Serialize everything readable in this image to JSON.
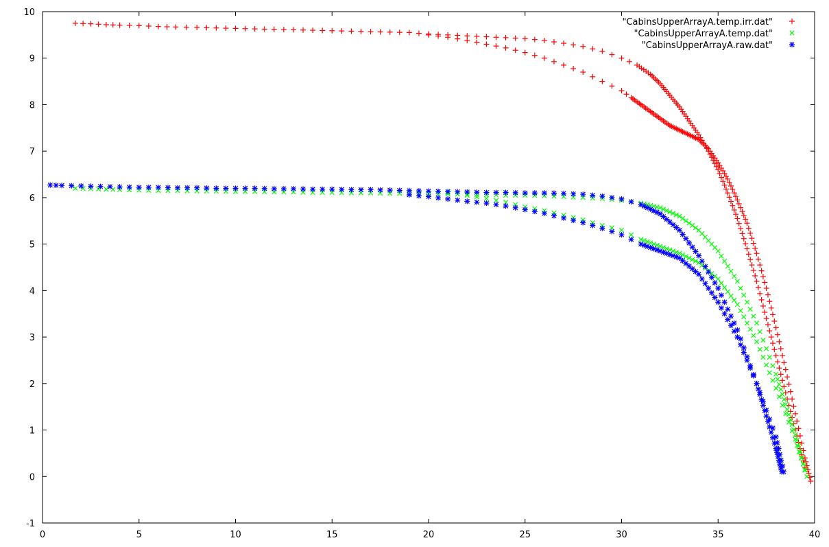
{
  "chart_data": {
    "type": "scatter",
    "title": "",
    "xlabel": "",
    "ylabel": "",
    "xlim": [
      0,
      40
    ],
    "ylim": [
      -1,
      10
    ],
    "xticks": [
      0,
      5,
      10,
      15,
      20,
      25,
      30,
      35,
      40
    ],
    "yticks": [
      -1,
      0,
      1,
      2,
      3,
      4,
      5,
      6,
      7,
      8,
      9,
      10
    ],
    "xtick_labels": [
      "0",
      "5",
      "10",
      "15",
      "20",
      "25",
      "30",
      "35",
      "40"
    ],
    "ytick_labels": [
      "-1",
      "0",
      "1",
      "2",
      "3",
      "4",
      "5",
      "6",
      "7",
      "8",
      "9",
      "10"
    ],
    "grid": false,
    "legend_position": "top-right",
    "series": [
      {
        "name": "\"CabinsUpperArrayA.temp.irr.dat\"",
        "color": "#ff0000",
        "marker": "plus",
        "upper_branch": {
          "x": [
            1.7,
            2.5,
            3.3,
            4.0,
            5.0,
            6.0,
            6.9,
            8.0,
            9.0,
            10.0,
            11.0,
            12.0,
            13.0,
            14.0,
            15.0,
            16.0,
            17.0,
            18.0,
            19.0,
            20.0,
            21.0,
            22.0,
            23.0,
            24.0,
            25.0,
            26.0,
            27.0,
            28.0,
            29.0,
            30.0,
            30.8,
            31.5,
            32.0,
            32.5,
            33.0,
            33.5,
            34.0,
            34.5,
            35.0,
            35.5,
            36.0,
            36.5,
            37.0,
            37.5,
            38.0,
            38.5,
            39.0,
            39.5
          ],
          "y": [
            9.75,
            9.74,
            9.72,
            9.71,
            9.7,
            9.68,
            9.67,
            9.66,
            9.65,
            9.64,
            9.63,
            9.62,
            9.61,
            9.6,
            9.59,
            9.58,
            9.57,
            9.56,
            9.55,
            9.52,
            9.5,
            9.48,
            9.46,
            9.44,
            9.42,
            9.38,
            9.32,
            9.25,
            9.15,
            9.0,
            8.85,
            8.65,
            8.45,
            8.2,
            7.95,
            7.65,
            7.35,
            7.0,
            6.6,
            6.1,
            5.55,
            4.9,
            4.2,
            3.4,
            2.6,
            1.8,
            1.0,
            0.2
          ]
        },
        "lower_branch": {
          "x": [
            20.0,
            21.0,
            22.0,
            23.0,
            24.0,
            25.0,
            26.0,
            27.0,
            28.0,
            29.0,
            30.0,
            30.5,
            31.0,
            31.5,
            32.0,
            32.5,
            33.0,
            33.5,
            34.0,
            34.5,
            35.0,
            35.5,
            36.0,
            36.5,
            37.0,
            37.5,
            38.0,
            38.5,
            39.0,
            39.5,
            39.8
          ],
          "y": [
            9.5,
            9.45,
            9.38,
            9.3,
            9.22,
            9.12,
            9.0,
            8.85,
            8.7,
            8.5,
            8.3,
            8.15,
            8.0,
            7.85,
            7.7,
            7.55,
            7.45,
            7.35,
            7.25,
            7.05,
            6.75,
            6.4,
            5.95,
            5.45,
            4.8,
            4.05,
            3.2,
            2.3,
            1.35,
            0.4,
            -0.1
          ]
        }
      },
      {
        "name": "\"CabinsUpperArrayA.temp.dat\"",
        "color": "#00ff00",
        "marker": "x",
        "upper_branch": {
          "x": [
            1.7,
            2.5,
            3.3,
            4.0,
            5.0,
            6.0,
            7.0,
            8.0,
            9.0,
            10.0,
            11.0,
            12.0,
            13.0,
            14.0,
            15.0,
            16.0,
            17.0,
            18.0,
            19.0,
            20.0,
            21.0,
            22.0,
            23.0,
            24.0,
            25.0,
            26.0,
            27.0,
            28.0,
            29.0,
            30.0,
            31.0,
            32.0,
            33.0,
            34.0,
            35.0,
            36.0,
            37.0,
            38.0,
            38.5,
            39.0,
            39.5
          ],
          "y": [
            6.2,
            6.19,
            6.18,
            6.17,
            6.16,
            6.15,
            6.15,
            6.14,
            6.14,
            6.13,
            6.13,
            6.12,
            6.12,
            6.11,
            6.11,
            6.1,
            6.1,
            6.09,
            6.09,
            6.08,
            6.08,
            6.07,
            6.06,
            6.05,
            6.05,
            6.04,
            6.02,
            6.0,
            5.98,
            5.94,
            5.88,
            5.78,
            5.6,
            5.3,
            4.85,
            4.2,
            3.3,
            2.2,
            1.55,
            0.9,
            0.15
          ]
        },
        "lower_branch": {
          "x": [
            21.0,
            22.0,
            23.0,
            24.0,
            25.0,
            26.0,
            27.0,
            28.0,
            29.0,
            30.0,
            31.0,
            32.0,
            33.0,
            34.0,
            35.0,
            36.0,
            37.0,
            38.0,
            39.0,
            39.6
          ],
          "y": [
            6.1,
            6.05,
            5.98,
            5.9,
            5.8,
            5.72,
            5.62,
            5.52,
            5.4,
            5.3,
            5.1,
            4.95,
            4.8,
            4.6,
            4.25,
            3.7,
            2.9,
            1.9,
            0.8,
            0.0
          ]
        }
      },
      {
        "name": "\"CabinsUpperArrayA.raw.dat\"",
        "color": "#0000ff",
        "marker": "star",
        "upper_branch": {
          "x": [
            0.4,
            1.0,
            2.0,
            3.0,
            4.0,
            5.0,
            6.0,
            7.0,
            8.0,
            9.0,
            10.0,
            11.0,
            12.0,
            13.0,
            14.0,
            15.0,
            16.0,
            17.0,
            18.0,
            19.0,
            20.0,
            21.0,
            22.0,
            23.0,
            24.0,
            25.0,
            26.0,
            27.0,
            28.0,
            29.0,
            30.0,
            31.0,
            32.0,
            33.0,
            34.0,
            35.0,
            36.0,
            37.0,
            37.5,
            38.0,
            38.3
          ],
          "y": [
            6.27,
            6.26,
            6.25,
            6.24,
            6.23,
            6.22,
            6.22,
            6.21,
            6.21,
            6.2,
            6.2,
            6.2,
            6.19,
            6.19,
            6.18,
            6.18,
            6.17,
            6.17,
            6.16,
            6.15,
            6.14,
            6.13,
            6.12,
            6.11,
            6.11,
            6.1,
            6.1,
            6.09,
            6.07,
            6.03,
            5.97,
            5.85,
            5.65,
            5.3,
            4.75,
            4.05,
            3.15,
            2.0,
            1.3,
            0.6,
            0.1
          ]
        },
        "lower_branch": {
          "x": [
            19.0,
            20.0,
            21.0,
            22.0,
            23.0,
            24.0,
            25.0,
            26.0,
            27.0,
            28.0,
            29.0,
            30.0,
            31.0,
            32.0,
            33.0,
            34.0,
            35.0,
            36.0,
            37.0,
            38.0,
            38.4
          ],
          "y": [
            6.06,
            6.02,
            5.97,
            5.92,
            5.88,
            5.82,
            5.74,
            5.66,
            5.56,
            5.46,
            5.34,
            5.2,
            5.0,
            4.85,
            4.7,
            4.35,
            3.75,
            3.0,
            2.0,
            0.85,
            0.1
          ]
        }
      }
    ]
  }
}
